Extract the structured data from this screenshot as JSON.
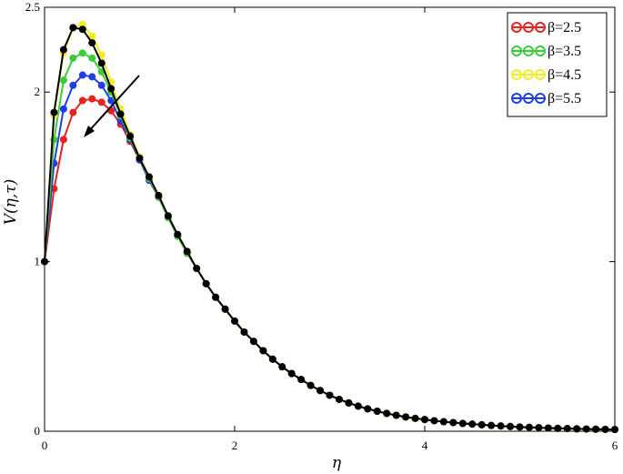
{
  "chart_data": {
    "type": "line",
    "title": "",
    "xlabel": "η",
    "ylabel": "V(η,τ)",
    "xlim": [
      0,
      6
    ],
    "ylim": [
      0,
      2.5
    ],
    "x_ticks": [
      "0",
      "2",
      "4",
      "6"
    ],
    "y_ticks": [
      "0",
      "1",
      "2",
      "2.5"
    ],
    "x_tick_values": [
      0,
      2,
      4,
      6
    ],
    "y_tick_values": [
      0,
      1,
      2,
      2.5
    ],
    "grid": false,
    "legend_position": "top-right",
    "annotation": "arrow indicating decreasing peak as β increases",
    "series": [
      {
        "name": "β=2.5",
        "color": "#e8231e",
        "x": [
          0,
          0.1,
          0.2,
          0.3,
          0.4,
          0.5,
          0.6,
          0.7,
          0.8,
          0.9,
          1.0,
          1.1,
          1.2,
          1.3,
          1.4,
          1.5,
          1.6,
          1.7,
          1.8,
          1.9,
          2.0,
          2.1,
          2.2,
          2.3,
          2.4,
          2.5,
          2.6,
          2.7,
          2.8,
          2.9,
          3.0,
          3.1,
          3.2,
          3.3,
          3.4,
          3.5,
          3.6,
          3.7,
          3.8,
          3.9,
          4.0,
          4.1,
          4.2,
          4.3,
          4.4,
          4.5,
          4.6,
          4.7,
          4.8,
          4.9,
          5.0,
          5.1,
          5.2,
          5.3,
          5.4,
          5.5,
          5.6,
          5.7,
          5.8,
          5.9,
          6.0
        ],
        "y": [
          1.0,
          1.43,
          1.72,
          1.88,
          1.95,
          1.96,
          1.94,
          1.89,
          1.81,
          1.71,
          1.6,
          1.48,
          1.38,
          1.26,
          1.15,
          1.05,
          0.96,
          0.87,
          0.79,
          0.72,
          0.65,
          0.585,
          0.53,
          0.475,
          0.425,
          0.38,
          0.34,
          0.305,
          0.27,
          0.24,
          0.212,
          0.188,
          0.167,
          0.148,
          0.132,
          0.118,
          0.105,
          0.094,
          0.084,
          0.076,
          0.069,
          0.062,
          0.056,
          0.051,
          0.046,
          0.042,
          0.038,
          0.034,
          0.031,
          0.028,
          0.025,
          0.023,
          0.021,
          0.019,
          0.017,
          0.016,
          0.014,
          0.013,
          0.012,
          0.011,
          0.01
        ]
      },
      {
        "name": "β=3.5",
        "color": "#3acd3a",
        "x": [
          0,
          0.1,
          0.2,
          0.3,
          0.4,
          0.5,
          0.6,
          0.7,
          0.8,
          0.9,
          1.0,
          1.1,
          1.2,
          1.3,
          1.4,
          1.5,
          1.6,
          1.7,
          1.8,
          1.9,
          2.0,
          2.1,
          2.2,
          2.3,
          2.4,
          2.5,
          2.6,
          2.7,
          2.8,
          2.9,
          3.0,
          3.1,
          3.2,
          3.3,
          3.4,
          3.5,
          3.6,
          3.7,
          3.8,
          3.9,
          4.0,
          4.1,
          4.2,
          4.3,
          4.4,
          4.5,
          4.6,
          4.7,
          4.8,
          4.9,
          5.0,
          5.1,
          5.2,
          5.3,
          5.4,
          5.5,
          5.6,
          5.7,
          5.8,
          5.9,
          6.0
        ],
        "y": [
          1.0,
          1.72,
          2.07,
          2.2,
          2.23,
          2.2,
          2.12,
          2.0,
          1.86,
          1.73,
          1.61,
          1.49,
          1.38,
          1.26,
          1.15,
          1.05,
          0.96,
          0.87,
          0.79,
          0.72,
          0.65,
          0.585,
          0.53,
          0.475,
          0.425,
          0.38,
          0.34,
          0.305,
          0.27,
          0.24,
          0.212,
          0.188,
          0.167,
          0.148,
          0.132,
          0.118,
          0.105,
          0.094,
          0.084,
          0.076,
          0.069,
          0.062,
          0.056,
          0.051,
          0.046,
          0.042,
          0.038,
          0.034,
          0.031,
          0.028,
          0.025,
          0.023,
          0.021,
          0.019,
          0.017,
          0.016,
          0.014,
          0.013,
          0.012,
          0.011,
          0.01
        ]
      },
      {
        "name": "β=4.5",
        "color": "#f1ee24",
        "x": [
          0,
          0.1,
          0.2,
          0.3,
          0.4,
          0.5,
          0.6,
          0.7,
          0.8,
          0.9,
          1.0,
          1.1,
          1.2,
          1.3,
          1.4,
          1.5,
          1.6,
          1.7,
          1.8,
          1.9,
          2.0,
          2.1,
          2.2,
          2.3,
          2.4,
          2.5,
          2.6,
          2.7,
          2.8,
          2.9,
          3.0,
          3.1,
          3.2,
          3.3,
          3.4,
          3.5,
          3.6,
          3.7,
          3.8,
          3.9,
          4.0,
          4.1,
          4.2,
          4.3,
          4.4,
          4.5,
          4.6,
          4.7,
          4.8,
          4.9,
          5.0,
          5.1,
          5.2,
          5.3,
          5.4,
          5.5,
          5.6,
          5.7,
          5.8,
          5.9,
          6.0
        ],
        "y": [
          1.0,
          1.86,
          2.23,
          2.38,
          2.4,
          2.33,
          2.22,
          2.06,
          1.9,
          1.75,
          1.62,
          1.5,
          1.39,
          1.27,
          1.16,
          1.06,
          0.96,
          0.87,
          0.79,
          0.72,
          0.65,
          0.585,
          0.53,
          0.475,
          0.425,
          0.38,
          0.34,
          0.305,
          0.27,
          0.24,
          0.212,
          0.188,
          0.167,
          0.148,
          0.132,
          0.118,
          0.105,
          0.094,
          0.084,
          0.076,
          0.069,
          0.062,
          0.056,
          0.051,
          0.046,
          0.042,
          0.038,
          0.034,
          0.031,
          0.028,
          0.025,
          0.023,
          0.021,
          0.019,
          0.017,
          0.016,
          0.014,
          0.013,
          0.012,
          0.011,
          0.01
        ]
      },
      {
        "name": "β=5.5",
        "color": "#1f3ee6",
        "x": [
          0,
          0.1,
          0.2,
          0.3,
          0.4,
          0.5,
          0.6,
          0.7,
          0.8,
          0.9,
          1.0,
          1.1,
          1.2,
          1.3,
          1.4,
          1.5,
          1.6,
          1.7,
          1.8,
          1.9,
          2.0,
          2.1,
          2.2,
          2.3,
          2.4,
          2.5,
          2.6,
          2.7,
          2.8,
          2.9,
          3.0,
          3.1,
          3.2,
          3.3,
          3.4,
          3.5,
          3.6,
          3.7,
          3.8,
          3.9,
          4.0,
          4.1,
          4.2,
          4.3,
          4.4,
          4.5,
          4.6,
          4.7,
          4.8,
          4.9,
          5.0,
          5.1,
          5.2,
          5.3,
          5.4,
          5.5,
          5.6,
          5.7,
          5.8,
          5.9,
          6.0
        ],
        "y": [
          1.0,
          1.58,
          1.9,
          2.04,
          2.1,
          2.09,
          2.04,
          1.95,
          1.83,
          1.72,
          1.6,
          1.48,
          1.38,
          1.26,
          1.15,
          1.05,
          0.96,
          0.87,
          0.79,
          0.72,
          0.65,
          0.585,
          0.53,
          0.475,
          0.425,
          0.38,
          0.34,
          0.305,
          0.27,
          0.24,
          0.212,
          0.188,
          0.167,
          0.148,
          0.132,
          0.118,
          0.105,
          0.094,
          0.084,
          0.076,
          0.069,
          0.062,
          0.056,
          0.051,
          0.046,
          0.042,
          0.038,
          0.034,
          0.031,
          0.028,
          0.025,
          0.023,
          0.021,
          0.019,
          0.017,
          0.016,
          0.014,
          0.013,
          0.012,
          0.011,
          0.01
        ]
      },
      {
        "name": "",
        "color": "#000000",
        "x": [
          0,
          0.1,
          0.2,
          0.3,
          0.4,
          0.5,
          0.6,
          0.7,
          0.8,
          0.9,
          1.0,
          1.1,
          1.2,
          1.3,
          1.4,
          1.5,
          1.6,
          1.7,
          1.8,
          1.9,
          2.0,
          2.1,
          2.2,
          2.3,
          2.4,
          2.5,
          2.6,
          2.7,
          2.8,
          2.9,
          3.0,
          3.1,
          3.2,
          3.3,
          3.4,
          3.5,
          3.6,
          3.7,
          3.8,
          3.9,
          4.0,
          4.1,
          4.2,
          4.3,
          4.4,
          4.5,
          4.6,
          4.7,
          4.8,
          4.9,
          5.0,
          5.1,
          5.2,
          5.3,
          5.4,
          5.5,
          5.6,
          5.7,
          5.8,
          5.9,
          6.0
        ],
        "y": [
          1.0,
          1.88,
          2.25,
          2.38,
          2.37,
          2.29,
          2.17,
          2.02,
          1.87,
          1.74,
          1.61,
          1.5,
          1.39,
          1.27,
          1.16,
          1.06,
          0.96,
          0.87,
          0.79,
          0.72,
          0.65,
          0.585,
          0.53,
          0.475,
          0.425,
          0.38,
          0.34,
          0.305,
          0.27,
          0.24,
          0.212,
          0.188,
          0.167,
          0.148,
          0.132,
          0.118,
          0.105,
          0.094,
          0.084,
          0.076,
          0.069,
          0.062,
          0.056,
          0.051,
          0.046,
          0.042,
          0.038,
          0.034,
          0.031,
          0.028,
          0.025,
          0.023,
          0.021,
          0.019,
          0.017,
          0.016,
          0.014,
          0.013,
          0.012,
          0.011,
          0.01
        ]
      }
    ]
  }
}
